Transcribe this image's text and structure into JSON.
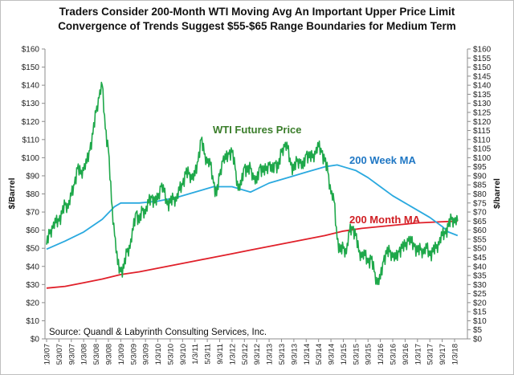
{
  "chart_data": {
    "type": "line",
    "title": "Traders Consider 200-Month WTI Moving Avg An Important Upper Price Limit",
    "subtitle": "Convergence of Trends Suggest $55-$65 Range Boundaries for Medium Term",
    "ylabel_left": "$/Barrel",
    "ylabel_right": "$/barrel",
    "xlabel": "",
    "ylim": [
      0,
      160
    ],
    "left_ticks": [
      "$0",
      "$10",
      "$20",
      "$30",
      "$40",
      "$50",
      "$60",
      "$70",
      "$80",
      "$90",
      "$100",
      "$110",
      "$120",
      "$130",
      "$140",
      "$150",
      "$160"
    ],
    "left_tick_values": [
      0,
      10,
      20,
      30,
      40,
      50,
      60,
      70,
      80,
      90,
      100,
      110,
      120,
      130,
      140,
      150,
      160
    ],
    "right_ticks": [
      "$0",
      "$5",
      "$10",
      "$15",
      "$20",
      "$25",
      "$30",
      "$35",
      "$40",
      "$45",
      "$50",
      "$55",
      "$60",
      "$65",
      "$70",
      "$75",
      "$80",
      "$85",
      "$90",
      "$95",
      "$100",
      "$105",
      "$110",
      "$115",
      "$120",
      "$125",
      "$130",
      "$135",
      "$140",
      "$145",
      "$150",
      "$155",
      "$160"
    ],
    "right_tick_values": [
      0,
      5,
      10,
      15,
      20,
      25,
      30,
      35,
      40,
      45,
      50,
      55,
      60,
      65,
      70,
      75,
      80,
      85,
      90,
      95,
      100,
      105,
      110,
      115,
      120,
      125,
      130,
      135,
      140,
      145,
      150,
      155,
      160
    ],
    "x_tick_labels": [
      "1/3/07",
      "5/3/07",
      "9/3/07",
      "1/3/08",
      "5/3/08",
      "9/3/08",
      "1/3/09",
      "5/3/09",
      "9/3/09",
      "1/3/10",
      "5/3/10",
      "9/3/10",
      "1/3/11",
      "5/3/11",
      "9/3/11",
      "1/3/12",
      "5/3/12",
      "9/3/12",
      "1/3/13",
      "5/3/13",
      "9/3/13",
      "1/3/14",
      "5/3/14",
      "9/3/14",
      "1/3/15",
      "5/3/15",
      "9/3/15",
      "1/3/16",
      "5/3/16",
      "9/3/16",
      "1/3/17",
      "5/3/17",
      "9/3/17",
      "1/3/18"
    ],
    "x_range_months": [
      0,
      134
    ],
    "grid": false,
    "x_unit": "months since Jan 2007",
    "series": [
      {
        "name": "WTI Futures Price",
        "color": "#1ea84a",
        "label_text": "WTI Futures Price",
        "x": [
          0,
          1,
          2,
          3,
          4,
          5,
          6,
          7,
          8,
          9,
          10,
          11,
          12,
          13,
          14,
          15,
          16,
          17,
          18,
          19,
          20,
          21,
          22,
          23,
          24,
          25,
          26,
          27,
          28,
          29,
          30,
          31,
          32,
          33,
          34,
          35,
          36,
          37,
          38,
          39,
          40,
          41,
          42,
          43,
          44,
          45,
          46,
          47,
          48,
          49,
          50,
          51,
          52,
          53,
          54,
          55,
          56,
          57,
          58,
          59,
          60,
          61,
          62,
          63,
          64,
          65,
          66,
          67,
          68,
          69,
          70,
          71,
          72,
          73,
          74,
          75,
          76,
          77,
          78,
          79,
          80,
          81,
          82,
          83,
          84,
          85,
          86,
          87,
          88,
          89,
          90,
          91,
          92,
          93,
          94,
          95,
          96,
          97,
          98,
          99,
          100,
          101,
          102,
          103,
          104,
          105,
          106,
          107,
          108,
          109,
          110,
          111,
          112,
          113,
          114,
          115,
          116,
          117,
          118,
          119,
          120,
          121,
          122,
          123,
          124,
          125,
          126,
          127,
          128,
          129,
          130,
          131,
          132,
          133
        ],
        "values": [
          52,
          58,
          61,
          64,
          65,
          69,
          74,
          72,
          79,
          85,
          94,
          91,
          93,
          97,
          104,
          113,
          125,
          133,
          140,
          116,
          104,
          76,
          57,
          41,
          37,
          39,
          48,
          50,
          60,
          70,
          64,
          71,
          69,
          75,
          78,
          75,
          77,
          84,
          81,
          74,
          75,
          77,
          76,
          82,
          85,
          91,
          91,
          88,
          90,
          98,
          110,
          102,
          97,
          96,
          86,
          79,
          90,
          98,
          99,
          102,
          103,
          94,
          82,
          85,
          95,
          92,
          94,
          88,
          86,
          95,
          92,
          93,
          96,
          92,
          97,
          94,
          103,
          106,
          105,
          96,
          93,
          98,
          97,
          94,
          102,
          100,
          100,
          102,
          106,
          103,
          98,
          92,
          80,
          76,
          55,
          48,
          50,
          47,
          59,
          61,
          57,
          48,
          45,
          46,
          42,
          44,
          37,
          30,
          33,
          43,
          47,
          48,
          45,
          44,
          48,
          50,
          51,
          54,
          53,
          51,
          48,
          49,
          47,
          50,
          46,
          48,
          50,
          52,
          57,
          58,
          62,
          66,
          64,
          65
        ],
        "approximate": true
      },
      {
        "name": "200 Week MA",
        "color": "#2aa9df",
        "label_text": "200 Week MA",
        "x": [
          0,
          6,
          12,
          18,
          22,
          24,
          30,
          36,
          42,
          48,
          54,
          60,
          66,
          72,
          78,
          84,
          90,
          94,
          96,
          100,
          104,
          108,
          112,
          116,
          120,
          124,
          128,
          130,
          133
        ],
        "values": [
          49.5,
          54,
          59,
          66,
          73,
          75,
          75,
          76,
          78,
          81,
          84,
          84,
          81,
          86,
          89,
          92,
          95,
          96,
          95,
          93,
          89,
          84,
          79,
          75,
          71,
          67,
          62,
          59,
          57
        ],
        "approximate": true
      },
      {
        "name": "200 Month MA",
        "color": "#e0202a",
        "label_text": "200 Month MA",
        "x": [
          0,
          6,
          12,
          18,
          24,
          30,
          36,
          42,
          48,
          54,
          60,
          66,
          72,
          78,
          84,
          90,
          96,
          102,
          108,
          114,
          120,
          126,
          133
        ],
        "values": [
          28,
          29,
          31,
          33,
          35.5,
          37,
          39,
          41,
          43,
          45,
          47,
          49,
          51,
          53,
          55,
          57,
          59.5,
          61,
          62,
          63,
          64,
          64.5,
          65
        ],
        "approximate": true
      }
    ],
    "annotations": [
      "Source:  Quandl & Labyrinth Consulting Services, Inc."
    ]
  }
}
